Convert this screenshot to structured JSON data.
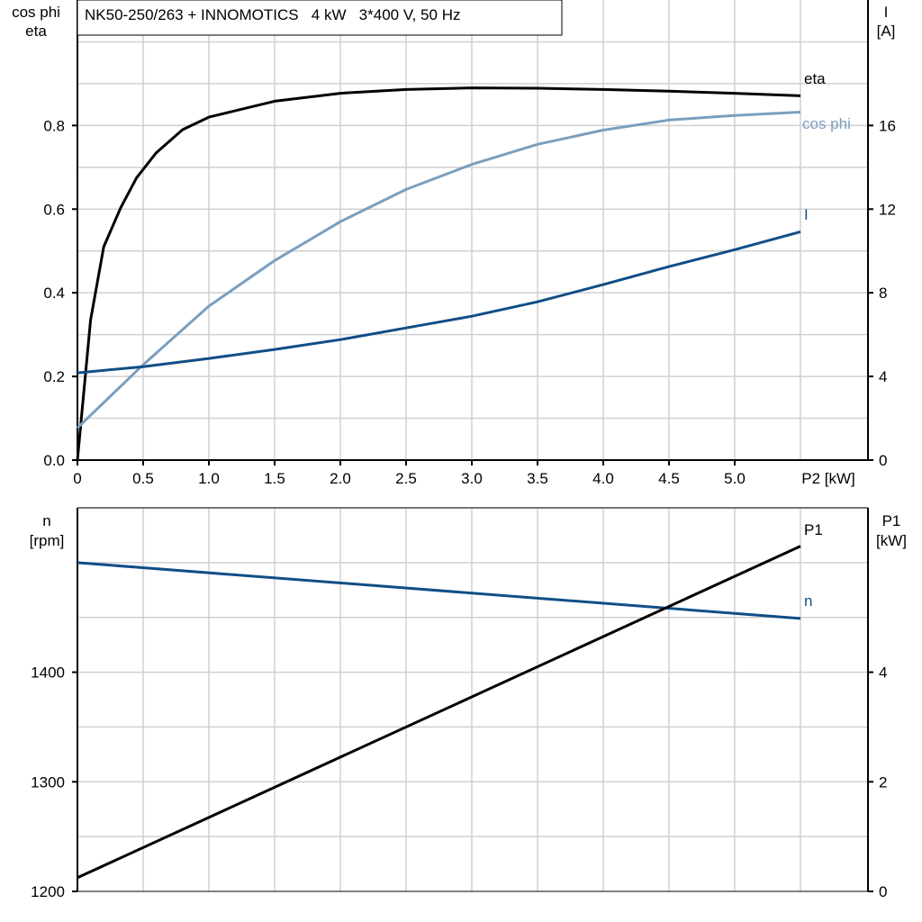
{
  "colors": {
    "eta": "#000000",
    "cos_phi": "#7a9fbf",
    "I": "#104e86",
    "n": "#104e86",
    "P1": "#000000",
    "grid": "#d0d0d0"
  },
  "chart_data": [
    {
      "type": "line",
      "title": "NK50-250/263 + INNOMOTICS   4 kW   3*400 V, 50 Hz",
      "xlabel": "P2 [kW]",
      "ylabel_left": [
        "cos phi",
        "eta"
      ],
      "ylabel_right": [
        "I",
        "[A]"
      ],
      "xlim": [
        0,
        6
      ],
      "ylim_left": [
        0,
        1.1
      ],
      "ylim_right": [
        0,
        22
      ],
      "grid": true,
      "x_ticks": [
        "0",
        "0.5",
        "1.0",
        "1.5",
        "2.0",
        "2.5",
        "3.0",
        "3.5",
        "4.0",
        "4.5",
        "5.0"
      ],
      "y_ticks_left": [
        "0.0",
        "0.2",
        "0.4",
        "0.6",
        "0.8"
      ],
      "y_ticks_right": [
        "0",
        "4",
        "8",
        "12",
        "16"
      ],
      "series": [
        {
          "name": "eta",
          "axis": "left",
          "x": [
            0,
            0.1,
            0.2,
            0.33,
            0.45,
            0.6,
            0.8,
            1.0,
            1.5,
            2.0,
            2.5,
            3.0,
            3.5,
            4.0,
            4.5,
            5.0,
            5.5
          ],
          "y": [
            0,
            0.335,
            0.51,
            0.604,
            0.675,
            0.735,
            0.79,
            0.82,
            0.858,
            0.877,
            0.886,
            0.89,
            0.889,
            0.886,
            0.882,
            0.877,
            0.871
          ]
        },
        {
          "name": "cos phi",
          "axis": "left",
          "x": [
            0,
            0.5,
            1.0,
            1.5,
            2.0,
            2.5,
            3.0,
            3.5,
            4.0,
            4.5,
            5.0,
            5.5
          ],
          "y": [
            0.077,
            0.228,
            0.368,
            0.477,
            0.57,
            0.647,
            0.707,
            0.755,
            0.789,
            0.813,
            0.824,
            0.832
          ]
        },
        {
          "name": "I",
          "axis": "right",
          "x": [
            0,
            0.5,
            1.0,
            1.5,
            2.0,
            2.5,
            3.0,
            3.5,
            4.0,
            4.5,
            5.0,
            5.5
          ],
          "y": [
            4.17,
            4.47,
            4.86,
            5.29,
            5.76,
            6.32,
            6.88,
            7.57,
            8.39,
            9.25,
            10.06,
            10.92
          ]
        }
      ]
    },
    {
      "type": "line",
      "ylabel_left": [
        "n",
        "[rpm]"
      ],
      "ylabel_right": [
        "P1",
        "[kW]"
      ],
      "xlim": [
        0,
        6
      ],
      "ylim_left": [
        1200,
        1550
      ],
      "ylim_right": [
        0,
        7
      ],
      "grid": true,
      "y_ticks_left": [
        "1200",
        "1300",
        "1400"
      ],
      "y_ticks_right": [
        "0",
        "2",
        "4"
      ],
      "series": [
        {
          "name": "n",
          "axis": "left",
          "x": [
            0,
            5.5
          ],
          "y": [
            1500,
            1449
          ]
        },
        {
          "name": "P1",
          "axis": "right",
          "x": [
            0,
            5.5
          ],
          "y": [
            0.25,
            6.3
          ]
        }
      ]
    }
  ]
}
